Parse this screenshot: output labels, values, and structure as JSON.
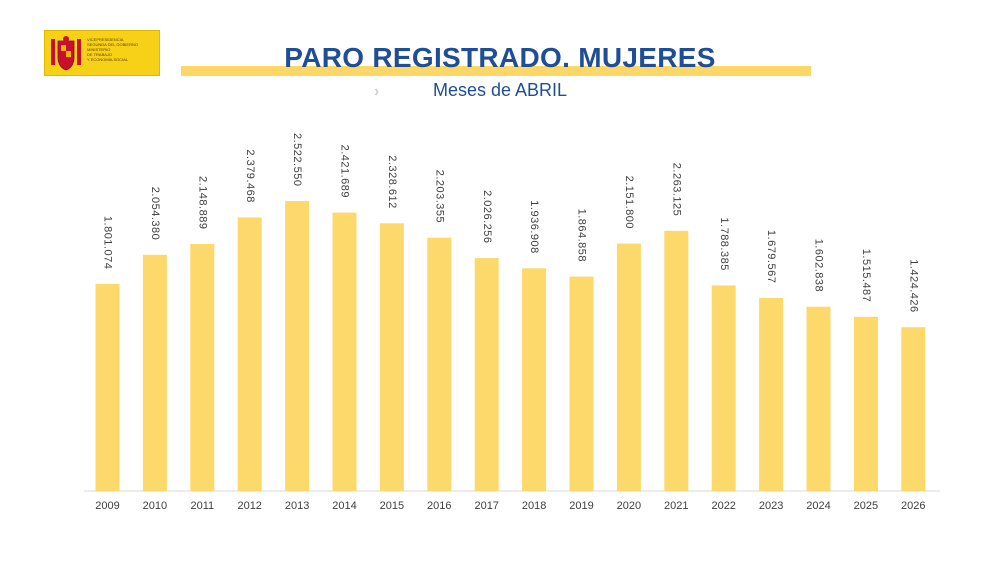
{
  "header": {
    "logo_lines": [
      "VICEPRESIDENCIA",
      "SEGUNDA DEL GOBIERNO",
      "MINISTERIO",
      "DE TRABAJO",
      "Y ECONOMÍA SOCIAL"
    ],
    "title": "PARO REGISTRADO. MUJERES",
    "subtitle": "Meses de ABRIL",
    "arrow_icon": "chevron-right-icon"
  },
  "colors": {
    "bar": "#fdd96b",
    "title": "#1f4e96",
    "band": "#fcd766",
    "axis": "#d9d9d9"
  },
  "chart_data": {
    "type": "bar",
    "title": "PARO REGISTRADO. MUJERES",
    "subtitle": "Meses de ABRIL",
    "categories": [
      "2009",
      "2010",
      "2011",
      "2012",
      "2013",
      "2014",
      "2015",
      "2016",
      "2017",
      "2018",
      "2019",
      "2020",
      "2021",
      "2022",
      "2023",
      "2024",
      "2025",
      "2026"
    ],
    "values": [
      1801074,
      2054380,
      2148889,
      2379468,
      2522550,
      2421689,
      2328612,
      2203355,
      2026256,
      1936908,
      1864858,
      2151800,
      2263125,
      1788385,
      1679567,
      1602838,
      1515487,
      1424426
    ],
    "value_labels": [
      "1.801.074",
      "2.054.380",
      "2.148.889",
      "2.379.468",
      "2.522.550",
      "2.421.689",
      "2.328.612",
      "2.203.355",
      "2.026.256",
      "1.936.908",
      "1.864.858",
      "2.151.800",
      "2.263.125",
      "1.788.385",
      "1.679.567",
      "1.602.838",
      "1.515.487",
      "1.424.426"
    ],
    "xlabel": "",
    "ylabel": "",
    "grid": false,
    "legend": "none"
  }
}
